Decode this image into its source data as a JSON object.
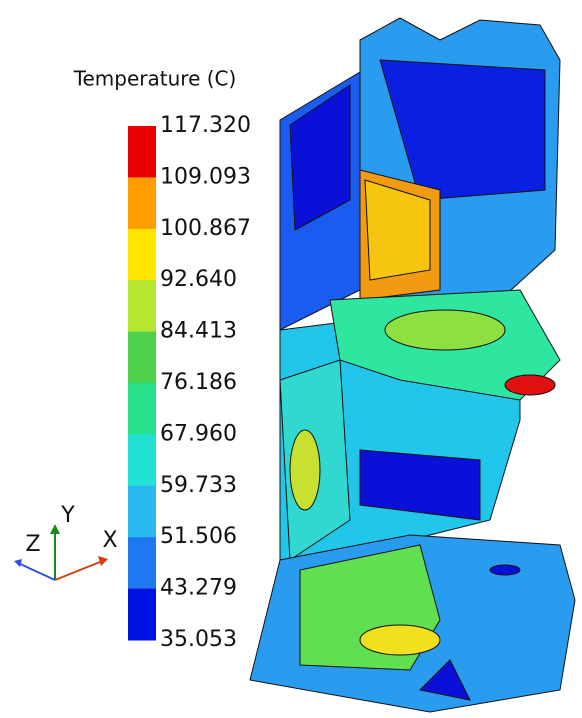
{
  "legend": {
    "title": "Temperature (C)",
    "labels": [
      "117.320",
      "109.093",
      "100.867",
      "92.640",
      "84.413",
      "76.186",
      "67.960",
      "59.733",
      "51.506",
      "43.279",
      "35.053"
    ]
  },
  "triad": {
    "z": "Z",
    "y": "Y",
    "x": "X"
  }
}
